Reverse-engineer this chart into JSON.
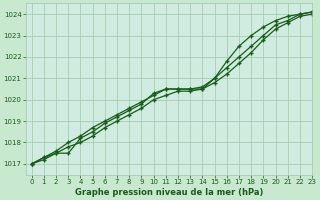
{
  "title": "Graphe pression niveau de la mer (hPa)",
  "background_color": "#c8e8d0",
  "plot_bg_color": "#d0ece0",
  "grid_color": "#a0c8a8",
  "line_color": "#1a5c1a",
  "xlim": [
    -0.5,
    23
  ],
  "ylim": [
    1016.5,
    1024.5
  ],
  "yticks": [
    1017,
    1018,
    1019,
    1020,
    1021,
    1022,
    1023,
    1024
  ],
  "xticks": [
    0,
    1,
    2,
    3,
    4,
    5,
    6,
    7,
    8,
    9,
    10,
    11,
    12,
    13,
    14,
    15,
    16,
    17,
    18,
    19,
    20,
    21,
    22,
    23
  ],
  "series": [
    [
      1017.0,
      1017.3,
      1017.5,
      1017.5,
      1018.2,
      1018.5,
      1018.9,
      1019.2,
      1019.5,
      1019.8,
      1020.3,
      1020.5,
      1020.5,
      1020.5,
      1020.5,
      1021.0,
      1021.5,
      1022.0,
      1022.5,
      1023.0,
      1023.5,
      1023.7,
      1024.0,
      1024.1
    ],
    [
      1017.0,
      1017.2,
      1017.5,
      1017.8,
      1018.0,
      1018.3,
      1018.7,
      1019.0,
      1019.3,
      1019.6,
      1020.0,
      1020.2,
      1020.4,
      1020.4,
      1020.5,
      1020.8,
      1021.2,
      1021.7,
      1022.2,
      1022.8,
      1023.3,
      1023.6,
      1023.9,
      1024.0
    ],
    [
      1017.0,
      1017.3,
      1017.6,
      1018.0,
      1018.3,
      1018.7,
      1019.0,
      1019.3,
      1019.6,
      1019.9,
      1020.2,
      1020.5,
      1020.5,
      1020.5,
      1020.6,
      1021.0,
      1021.8,
      1022.5,
      1023.0,
      1023.4,
      1023.7,
      1023.9,
      1024.0,
      1024.1
    ]
  ]
}
